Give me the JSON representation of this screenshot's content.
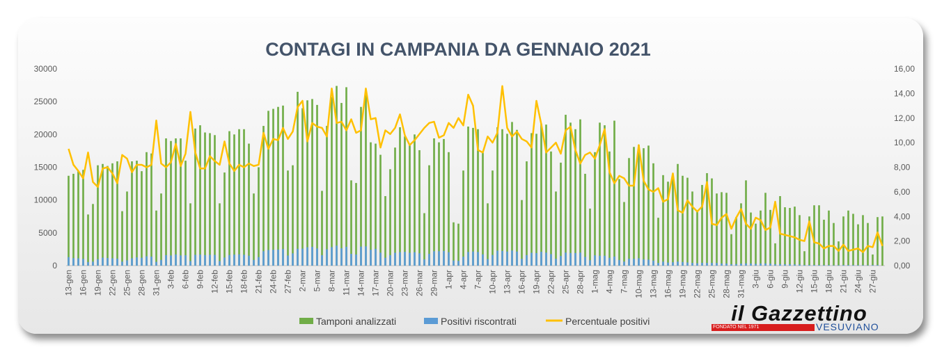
{
  "chart_data": {
    "type": "bar+line",
    "title": "CONTAGI IN CAMPANIA DA GENNAIO 2021",
    "y_left": {
      "min": 0,
      "max": 30000,
      "ticks": [
        "0",
        "5000",
        "10000",
        "15000",
        "20000",
        "25000",
        "30000"
      ]
    },
    "y_right": {
      "min": 0,
      "max": 16,
      "ticks": [
        "0,00",
        "2,00",
        "4,00",
        "6,00",
        "8,00",
        "10,00",
        "12,00",
        "14,00",
        "16,00"
      ]
    },
    "x_tick_labels": [
      "13-gen",
      "16-gen",
      "19-gen",
      "22-gen",
      "25-gen",
      "28-gen",
      "31-gen",
      "3-feb",
      "6-feb",
      "9-feb",
      "12-feb",
      "15-feb",
      "18-feb",
      "21-feb",
      "24-feb",
      "27-feb",
      "2-mar",
      "5-mar",
      "8-mar",
      "11-mar",
      "14-mar",
      "17-mar",
      "20-mar",
      "23-mar",
      "26-mar",
      "29-mar",
      "1-apr",
      "4-apr",
      "7-apr",
      "10-apr",
      "13-apr",
      "16-apr",
      "19-apr",
      "22-apr",
      "25-apr",
      "28-apr",
      "1-mag",
      "4-mag",
      "7-mag",
      "10-mag",
      "13-mag",
      "16-mag",
      "19-mag",
      "22-mag",
      "25-mag",
      "28-mag",
      "31-mag",
      "3-giu",
      "6-giu",
      "9-giu",
      "12-giu",
      "15-giu",
      "18-giu",
      "21-giu",
      "24-giu",
      "27-giu"
    ],
    "start_date": "13-gen",
    "day_count": 168,
    "legend": [
      "Tamponi analizzati",
      "Positivi riscontrati",
      "Percentuale positivi"
    ],
    "colors": {
      "tamponi": "#70ad47",
      "positivi": "#5b9bd5",
      "percentuale": "#ffc000"
    },
    "series": [
      {
        "name": "Tamponi analizzati",
        "values": [
          13700,
          14000,
          14400,
          14600,
          7800,
          9400,
          15300,
          15500,
          15200,
          15600,
          15900,
          8300,
          11300,
          15900,
          16000,
          14400,
          17300,
          17100,
          8400,
          11000,
          19400,
          19000,
          19400,
          19400,
          16000,
          9500,
          20900,
          21400,
          20300,
          20200,
          19900,
          9500,
          14200,
          20500,
          20000,
          20800,
          20800,
          18600,
          11000,
          15000,
          21300,
          23600,
          23900,
          24200,
          24400,
          14500,
          15300,
          26500,
          24000,
          25200,
          25400,
          24500,
          11400,
          21300,
          25700,
          27400,
          24800,
          27200,
          13000,
          12600,
          24200,
          26100,
          18800,
          18600,
          16900,
          10600,
          14700,
          18000,
          21100,
          19700,
          18500,
          20000,
          17600,
          8000,
          15300,
          19400,
          18800,
          19300,
          17300,
          6600,
          6400,
          14500,
          21200,
          21000,
          20800,
          17200,
          9500,
          14500,
          21100,
          20800,
          20100,
          21900,
          20700,
          10000,
          15900,
          20200,
          20100,
          21600,
          21500,
          17400,
          11300,
          15700,
          23000,
          21800,
          20800,
          22300,
          14000,
          8700,
          17300,
          21800,
          21400,
          17400,
          22100,
          13200,
          9700,
          16400,
          18100,
          18400,
          17900,
          18300,
          15600,
          7300,
          13800,
          12800,
          13300,
          15500,
          13700,
          13400,
          11300,
          8400,
          12300,
          14100,
          13300,
          11000,
          11200,
          11100,
          4800,
          7400,
          9500,
          13000,
          8100,
          6400,
          8400,
          11100,
          8500,
          3400,
          10600,
          8900,
          8800,
          9000,
          7700,
          2200,
          7500,
          9200,
          9200,
          7000,
          8400,
          6500,
          3700,
          7500,
          8400,
          7900,
          6300,
          7700,
          6500,
          1700,
          7400,
          7500
        ]
      },
      {
        "name": "Positivi riscontrati",
        "values": [
          1300,
          1140,
          1110,
          1030,
          550,
          610,
          980,
          1220,
          1160,
          1110,
          1070,
          610,
          810,
          1120,
          1260,
          1200,
          1430,
          1380,
          580,
          870,
          1600,
          1550,
          1700,
          1560,
          1580,
          700,
          1650,
          1680,
          1610,
          1650,
          1640,
          700,
          1230,
          1620,
          1680,
          1720,
          1660,
          1520,
          870,
          1300,
          2200,
          2380,
          2420,
          2450,
          2520,
          1540,
          1870,
          2570,
          2590,
          2800,
          2870,
          2620,
          1600,
          2500,
          2820,
          3050,
          2650,
          2880,
          1800,
          1700,
          2900,
          2940,
          2420,
          2560,
          1980,
          1200,
          1600,
          1970,
          2060,
          2100,
          1960,
          2050,
          1880,
          960,
          1800,
          2200,
          2200,
          2240,
          2050,
          780,
          720,
          1370,
          2080,
          2150,
          2080,
          1720,
          1000,
          1630,
          2280,
          2240,
          2150,
          2310,
          2150,
          1040,
          1600,
          1960,
          1920,
          2110,
          1990,
          1760,
          1060,
          1470,
          1990,
          1930,
          1930,
          1990,
          1330,
          830,
          1570,
          1510,
          1510,
          1200,
          1380,
          860,
          620,
          1050,
          1050,
          1120,
          960,
          920,
          760,
          410,
          610,
          470,
          520,
          610,
          550,
          480,
          420,
          370,
          430,
          410,
          410,
          400,
          330,
          330,
          220,
          250,
          310,
          340,
          330,
          280,
          330,
          330,
          300,
          220,
          230,
          210,
          210,
          190,
          170,
          100,
          110,
          110,
          100,
          85,
          95,
          55,
          75,
          100,
          100,
          90,
          80,
          75,
          60,
          90,
          90
        ]
      },
      {
        "name": "Percentuale positivi",
        "values": [
          9.5,
          8.2,
          7.7,
          7.1,
          9.2,
          6.8,
          6.4,
          7.9,
          8.0,
          7.5,
          6.7,
          9.0,
          8.7,
          7.6,
          8.2,
          8.2,
          8.0,
          8.2,
          11.8,
          8.3,
          8.0,
          8.4,
          9.9,
          8.1,
          9.1,
          12.5,
          9.2,
          7.9,
          7.9,
          8.9,
          8.5,
          8.2,
          10.1,
          8.3,
          7.7,
          8.2,
          8.0,
          8.3,
          8.1,
          8.2,
          10.8,
          9.5,
          10.3,
          10.2,
          11.2,
          10.3,
          10.9,
          12.9,
          13.4,
          10.1,
          11.6,
          11.3,
          11.2,
          10.5,
          14.4,
          11.6,
          11.7,
          11.0,
          11.9,
          10.8,
          11.0,
          14.4,
          11.9,
          12.0,
          9.6,
          11.0,
          10.7,
          11.2,
          12.3,
          10.6,
          9.8,
          10.2,
          10.7,
          11.2,
          11.6,
          11.7,
          10.4,
          10.6,
          11.6,
          11.2,
          12.0,
          11.4,
          13.9,
          13.0,
          9.4,
          9.2,
          10.5,
          10.0,
          10.8,
          14.6,
          11.2,
          10.5,
          10.9,
          10.3,
          10.1,
          9.6,
          13.4,
          11.5,
          9.2,
          9.6,
          10.0,
          9.1,
          11.0,
          11.3,
          9.4,
          8.3,
          9.0,
          9.2,
          8.7,
          9.8,
          11.1,
          7.6,
          6.7,
          7.3,
          7.1,
          6.5,
          6.5,
          9.8,
          6.9,
          6.2,
          6.0,
          6.3,
          5.2,
          5.4,
          7.5,
          4.5,
          4.3,
          5.3,
          4.8,
          4.4,
          4.8,
          6.8,
          3.4,
          3.3,
          3.9,
          4.2,
          3.0,
          3.9,
          4.6,
          3.4,
          3.0,
          3.9,
          3.7,
          2.9,
          3.1,
          5.2,
          2.6,
          2.5,
          2.4,
          2.3,
          2.1,
          2.0,
          3.6,
          1.9,
          1.8,
          1.4,
          1.6,
          1.6,
          1.2,
          1.7,
          1.2,
          1.3,
          1.4,
          1.1,
          1.6,
          1.5,
          2.7,
          1.6,
          1.6
        ]
      }
    ]
  },
  "logo": {
    "name": "il Gazzettino",
    "sub": "VESUVIANO",
    "founded": "FONDATO NEL 1971"
  }
}
